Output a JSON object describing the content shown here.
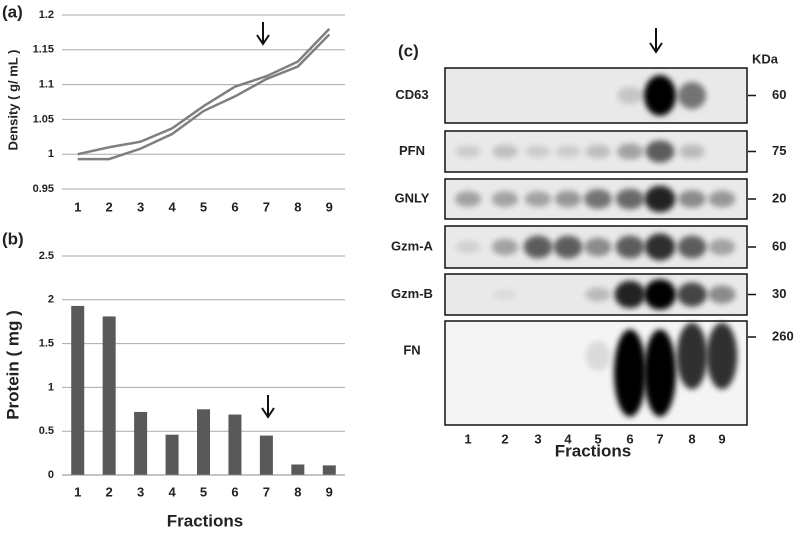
{
  "chart_data": [
    {
      "type": "line",
      "panel_label": "(a)",
      "ylabel": "Density ( g/ mL )",
      "categories": [
        "1",
        "2",
        "3",
        "4",
        "5",
        "6",
        "7",
        "8",
        "9"
      ],
      "series": [
        {
          "color": "#7f7f7f",
          "values": [
            1.0,
            1.01,
            1.018,
            1.037,
            1.069,
            1.097,
            1.112,
            1.133,
            1.18
          ]
        },
        {
          "color": "#7f7f7f",
          "values": [
            0.993,
            0.993,
            1.008,
            1.029,
            1.062,
            1.083,
            1.108,
            1.126,
            1.172
          ]
        }
      ],
      "ylim": [
        0.95,
        1.2
      ],
      "yticks": [
        0.95,
        1,
        1.05,
        1.1,
        1.15,
        1.2
      ],
      "grid": true
    },
    {
      "type": "bar",
      "panel_label": "(b)",
      "ylabel": "Protein ( mg )",
      "xlabel": "Fractions",
      "categories": [
        "1",
        "2",
        "3",
        "4",
        "5",
        "6",
        "7",
        "8",
        "9"
      ],
      "values": [
        1.93,
        1.81,
        0.72,
        0.46,
        0.75,
        0.69,
        0.45,
        0.12,
        0.11
      ],
      "color": "#595959",
      "ylim": [
        0,
        2.5
      ],
      "yticks": [
        0,
        0.5,
        1,
        1.5,
        2,
        2.5
      ],
      "grid": true
    }
  ],
  "blot": {
    "panel_label": "(c)",
    "unit_label": "KDa",
    "xlabel": "Fractions",
    "lanes": [
      "1",
      "2",
      "3",
      "4",
      "5",
      "6",
      "7",
      "8",
      "9"
    ],
    "rows": [
      {
        "name": "CD63",
        "kda": "60"
      },
      {
        "name": "PFN",
        "kda": "75"
      },
      {
        "name": "GNLY",
        "kda": "20"
      },
      {
        "name": "Gzm-A",
        "kda": "60"
      },
      {
        "name": "Gzm-B",
        "kda": "30"
      },
      {
        "name": "FN",
        "kda": "260"
      }
    ]
  }
}
